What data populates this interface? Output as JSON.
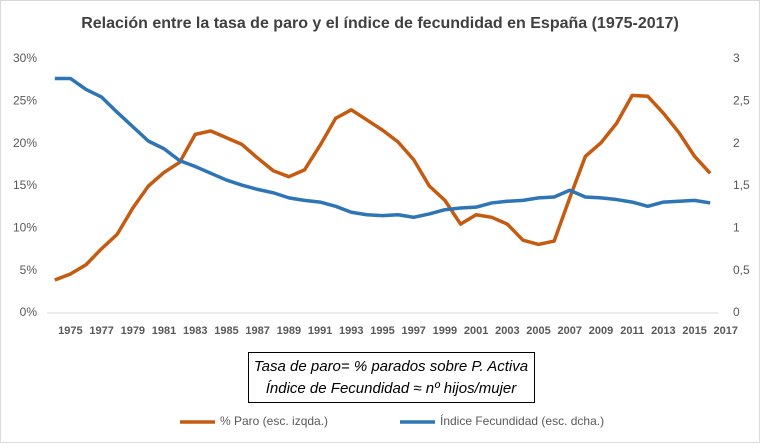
{
  "chart_data": {
    "type": "line",
    "title": "Relación entre la tasa de paro y el índice de fecundidad en España (1975-2017)",
    "categories": [
      "1975",
      null,
      "1977",
      null,
      "1979",
      null,
      "1981",
      null,
      "1983",
      null,
      "1985",
      null,
      "1987",
      null,
      "1989",
      null,
      "1991",
      null,
      "1993",
      null,
      "1995",
      null,
      "1997",
      null,
      "1999",
      null,
      "2001",
      null,
      "2003",
      null,
      "2005",
      null,
      "2007",
      null,
      "2009",
      null,
      "2011",
      null,
      "2013",
      null,
      "2015",
      null,
      "2017"
    ],
    "series": [
      {
        "name": "% Paro (esc. izqda.)",
        "color": "#c55a11",
        "axis": "y",
        "values": [
          3.9,
          4.6,
          5.7,
          7.6,
          9.3,
          12.4,
          15.0,
          16.6,
          17.8,
          21.1,
          21.5,
          20.7,
          19.9,
          18.3,
          16.8,
          16.1,
          16.9,
          19.8,
          23.0,
          24.0,
          22.8,
          21.6,
          20.2,
          18.1,
          15.0,
          13.3,
          10.5,
          11.6,
          11.3,
          10.5,
          8.6,
          8.1,
          8.5,
          13.6,
          18.5,
          20.1,
          22.4,
          25.7,
          25.6,
          23.6,
          21.3,
          18.5,
          16.5
        ]
      },
      {
        "name": "Índice Fecundidad (esc. dcha.)",
        "color": "#2e75b6",
        "axis": "y2",
        "values": [
          2.77,
          2.77,
          2.64,
          2.55,
          2.37,
          2.2,
          2.03,
          1.94,
          1.8,
          1.73,
          1.65,
          1.57,
          1.51,
          1.46,
          1.42,
          1.36,
          1.33,
          1.31,
          1.26,
          1.19,
          1.16,
          1.15,
          1.16,
          1.13,
          1.17,
          1.22,
          1.24,
          1.25,
          1.3,
          1.32,
          1.33,
          1.36,
          1.37,
          1.45,
          1.37,
          1.36,
          1.34,
          1.31,
          1.26,
          1.31,
          1.32,
          1.33,
          1.3
        ]
      }
    ],
    "ylim": [
      0,
      30
    ],
    "yticks": [
      {
        "value": 0,
        "label": "0%"
      },
      {
        "value": 5,
        "label": "5%"
      },
      {
        "value": 10,
        "label": "10%"
      },
      {
        "value": 15,
        "label": "15%"
      },
      {
        "value": 20,
        "label": "20%"
      },
      {
        "value": 25,
        "label": "25%"
      },
      {
        "value": 30,
        "label": "30%"
      }
    ],
    "y2lim": [
      0,
      3
    ],
    "y2ticks": [
      0,
      {
        "value": 0.5,
        "label": "0,5"
      },
      1,
      {
        "value": 1.5,
        "label": "1,5"
      },
      2,
      {
        "value": 2.5,
        "label": "2,5"
      },
      3
    ],
    "annotations": [
      "Tasa de paro= % parados sobre P. Activa",
      "Índice de Fecundidad ≈ nº hijos/mujer"
    ],
    "grid": false,
    "legend": "bottom"
  }
}
